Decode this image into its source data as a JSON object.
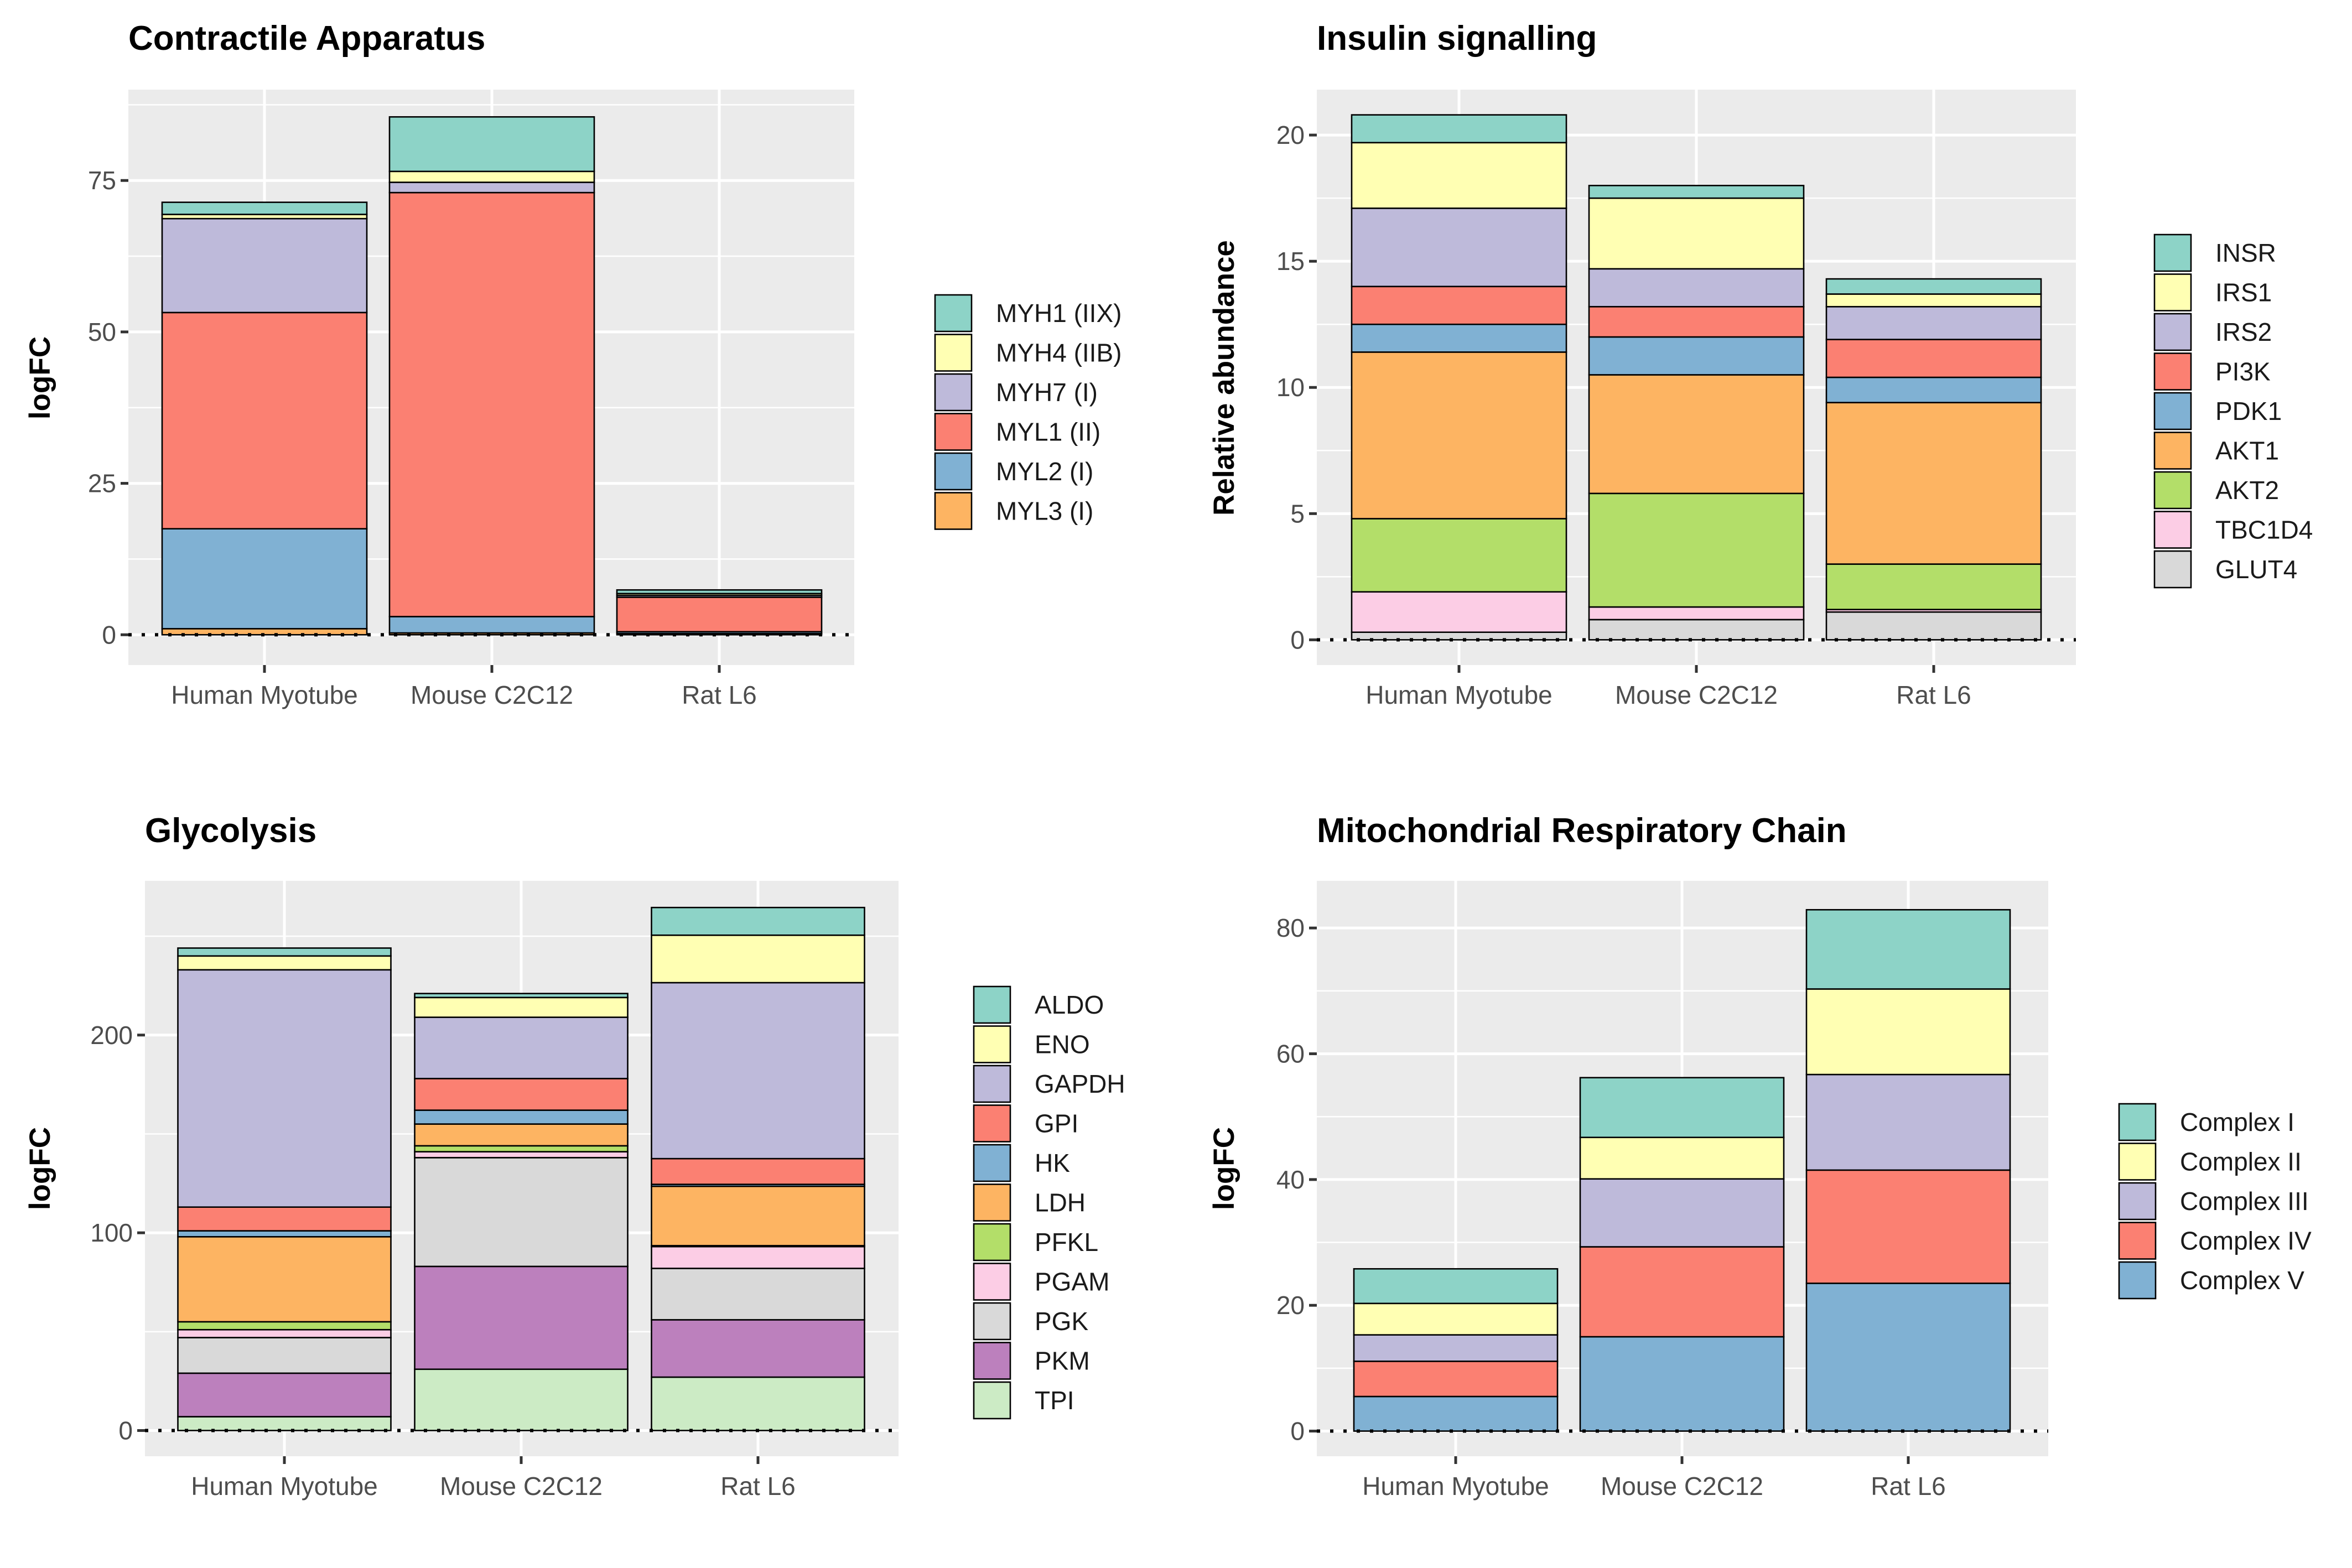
{
  "chart_data": [
    {
      "type": "bar",
      "stacked": true,
      "title": "Contractile Apparatus",
      "xlabel": "",
      "ylabel": "logFC",
      "categories": [
        "Human Myotube",
        "Mouse C2C12",
        "Rat L6"
      ],
      "ylim": [
        -5,
        90
      ],
      "yticks": [
        0,
        25,
        50,
        75
      ],
      "yticklabels": [
        "0",
        "25",
        "50",
        "75"
      ],
      "grid": true,
      "legend_position": "right",
      "series": [
        {
          "name": "MYL3 (I)",
          "color": "#FDB462",
          "values": [
            1.0,
            0.3,
            0.2
          ]
        },
        {
          "name": "MYL2 (I)",
          "color": "#80B1D3",
          "values": [
            16.5,
            2.7,
            0.3
          ]
        },
        {
          "name": "MYL1 (II)",
          "color": "#FB8072",
          "values": [
            35.7,
            70.0,
            5.7
          ]
        },
        {
          "name": "MYH7 (I)",
          "color": "#BEBADA",
          "values": [
            15.5,
            1.7,
            0.3
          ]
        },
        {
          "name": "MYH4 (IIB)",
          "color": "#FFFFB3",
          "values": [
            0.7,
            1.8,
            0.3
          ]
        },
        {
          "name": "MYH1 (IIX)",
          "color": "#8DD3C7",
          "values": [
            2.0,
            9.0,
            0.6
          ]
        }
      ]
    },
    {
      "type": "bar",
      "stacked": true,
      "title": "Insulin signalling",
      "xlabel": "",
      "ylabel": "Relative abundance",
      "categories": [
        "Human Myotube",
        "Mouse C2C12",
        "Rat L6"
      ],
      "ylim": [
        -1,
        21.8
      ],
      "yticks": [
        0,
        5,
        10,
        15,
        20
      ],
      "yticklabels": [
        "0",
        "5",
        "10",
        "15",
        "20"
      ],
      "grid": true,
      "legend_position": "right",
      "series": [
        {
          "name": "GLUT4",
          "color": "#D9D9D9",
          "values": [
            0.3,
            0.8,
            1.1
          ]
        },
        {
          "name": "TBC1D4",
          "color": "#FCCDE5",
          "values": [
            1.6,
            0.5,
            0.1
          ]
        },
        {
          "name": "AKT2",
          "color": "#B3DE69",
          "values": [
            2.9,
            4.5,
            1.8
          ]
        },
        {
          "name": "AKT1",
          "color": "#FDB462",
          "values": [
            6.6,
            4.7,
            6.4
          ]
        },
        {
          "name": "PDK1",
          "color": "#80B1D3",
          "values": [
            1.1,
            1.5,
            1.0
          ]
        },
        {
          "name": "PI3K",
          "color": "#FB8072",
          "values": [
            1.5,
            1.2,
            1.5
          ]
        },
        {
          "name": "IRS2",
          "color": "#BEBADA",
          "values": [
            3.1,
            1.5,
            1.3
          ]
        },
        {
          "name": "IRS1",
          "color": "#FFFFB3",
          "values": [
            2.6,
            2.8,
            0.5
          ]
        },
        {
          "name": "INSR",
          "color": "#8DD3C7",
          "values": [
            1.1,
            0.5,
            0.6
          ]
        }
      ]
    },
    {
      "type": "bar",
      "stacked": true,
      "title": "Glycolysis",
      "xlabel": "",
      "ylabel": "logFC",
      "categories": [
        "Human Myotube",
        "Mouse C2C12",
        "Rat L6"
      ],
      "ylim": [
        -13,
        278
      ],
      "yticks": [
        0,
        100,
        200
      ],
      "yticklabels": [
        "0",
        "100",
        "200"
      ],
      "grid": true,
      "legend_position": "right",
      "series": [
        {
          "name": "TPI",
          "color": "#CCEBC5",
          "values": [
            7,
            31,
            27
          ]
        },
        {
          "name": "PKM",
          "color": "#BC80BD",
          "values": [
            22,
            52,
            29
          ]
        },
        {
          "name": "PGK",
          "color": "#D9D9D9",
          "values": [
            18,
            55,
            26
          ]
        },
        {
          "name": "PGAM",
          "color": "#FCCDE5",
          "values": [
            4,
            3,
            11
          ]
        },
        {
          "name": "PFKL",
          "color": "#B3DE69",
          "values": [
            4,
            3,
            0.5
          ]
        },
        {
          "name": "LDH",
          "color": "#FDB462",
          "values": [
            43,
            11,
            30
          ]
        },
        {
          "name": "HK",
          "color": "#80B1D3",
          "values": [
            3,
            7,
            1
          ]
        },
        {
          "name": "GPI",
          "color": "#FB8072",
          "values": [
            12,
            16,
            13
          ]
        },
        {
          "name": "GAPDH",
          "color": "#BEBADA",
          "values": [
            120,
            31,
            89
          ]
        },
        {
          "name": "ENO",
          "color": "#FFFFB3",
          "values": [
            7,
            10,
            24
          ]
        },
        {
          "name": "ALDO",
          "color": "#8DD3C7",
          "values": [
            4,
            2,
            14
          ]
        }
      ]
    },
    {
      "type": "bar",
      "stacked": true,
      "title": "Mitochondrial Respiratory Chain",
      "xlabel": "",
      "ylabel": "logFC",
      "categories": [
        "Human Myotube",
        "Mouse C2C12",
        "Rat L6"
      ],
      "ylim": [
        -4,
        87.5
      ],
      "yticks": [
        0,
        20,
        40,
        60,
        80
      ],
      "yticklabels": [
        "0",
        "20",
        "40",
        "60",
        "80"
      ],
      "grid": true,
      "legend_position": "right",
      "series": [
        {
          "name": "Complex V",
          "color": "#80B1D3",
          "values": [
            5.5,
            15,
            23.5
          ]
        },
        {
          "name": "Complex IV",
          "color": "#FB8072",
          "values": [
            5.6,
            14.3,
            18
          ]
        },
        {
          "name": "Complex III",
          "color": "#BEBADA",
          "values": [
            4.2,
            10.8,
            15.2
          ]
        },
        {
          "name": "Complex II",
          "color": "#FFFFB3",
          "values": [
            5,
            6.6,
            13.6
          ]
        },
        {
          "name": "Complex I",
          "color": "#8DD3C7",
          "values": [
            5.5,
            9.5,
            12.6
          ]
        }
      ]
    }
  ]
}
